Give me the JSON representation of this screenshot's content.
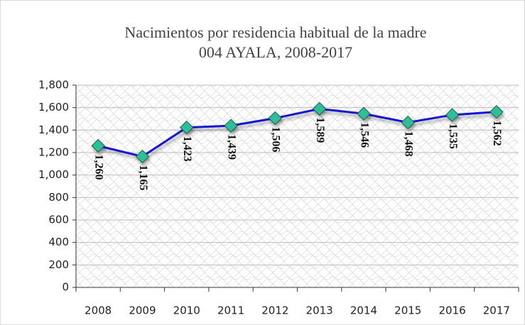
{
  "chart_data": {
    "type": "line",
    "title": "Nacimientos por residencia habitual de la madre",
    "subtitle": "004 AYALA, 2008-2017",
    "categories": [
      "2008",
      "2009",
      "2010",
      "2011",
      "2012",
      "2013",
      "2014",
      "2015",
      "2016",
      "2017"
    ],
    "series": [
      {
        "name": "Nacimientos",
        "color": "#1414d2",
        "marker_color": "#2fbf9a",
        "values": [
          1260,
          1165,
          1423,
          1439,
          1506,
          1589,
          1546,
          1468,
          1535,
          1562
        ],
        "value_labels": [
          "1,260",
          "1,165",
          "1,423",
          "1,439",
          "1,506",
          "1,589",
          "1,546",
          "1,468",
          "1,535",
          "1,562"
        ]
      }
    ],
    "ylim": [
      0,
      1800
    ],
    "yticks": [
      0,
      200,
      400,
      600,
      800,
      {
        "value": 1000,
        "label": "1,000"
      },
      {
        "value": 1200,
        "label": "1,200"
      },
      {
        "value": 1400,
        "label": "1,400"
      },
      {
        "value": 1600,
        "label": "1,600"
      },
      {
        "value": 1800,
        "label": "1,800"
      }
    ],
    "grid": true
  }
}
